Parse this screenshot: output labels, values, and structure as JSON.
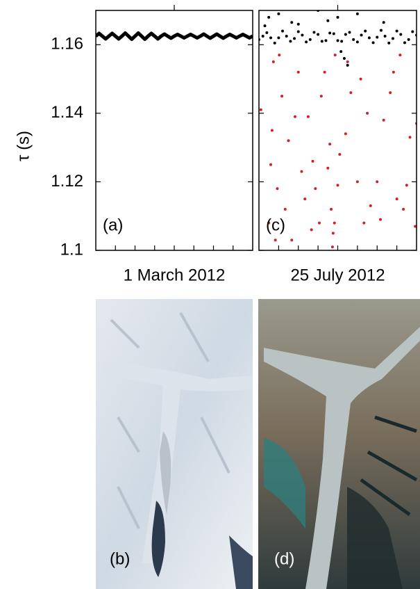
{
  "chart_data": [
    {
      "type": "line",
      "panel_label": "(a)",
      "x_label": "1 March 2012",
      "y_label": "τ (s)",
      "xlim": [
        0,
        24
      ],
      "xticks": [
        3,
        6,
        9,
        12,
        15,
        18,
        21
      ],
      "ylim": [
        1.1,
        1.17
      ],
      "yticks": [
        1.1,
        1.12,
        1.14,
        1.16
      ],
      "x": [
        0,
        0.5,
        1,
        1.5,
        2,
        2.5,
        3,
        3.5,
        4,
        4.5,
        5,
        5.5,
        6,
        6.5,
        7,
        7.5,
        8,
        8.5,
        9,
        9.5,
        10,
        10.5,
        11,
        11.5,
        12,
        12.5,
        13,
        13.5,
        14,
        14.5,
        15,
        15.5,
        16,
        16.5,
        17,
        17.5,
        18,
        18.5,
        19,
        19.5,
        20,
        20.5,
        21,
        21.5,
        22,
        22.5,
        23,
        23.5,
        24
      ],
      "series": [
        {
          "color": "#000000",
          "values": [
            1.1625,
            1.1633,
            1.1625,
            1.1617,
            1.1625,
            1.1633,
            1.1625,
            1.1617,
            1.1625,
            1.1634,
            1.1625,
            1.1616,
            1.1625,
            1.1634,
            1.1625,
            1.1616,
            1.1625,
            1.1633,
            1.1625,
            1.1617,
            1.1625,
            1.1631,
            1.1625,
            1.1619,
            1.1625,
            1.163,
            1.1625,
            1.162,
            1.1625,
            1.163,
            1.1625,
            1.162,
            1.1625,
            1.1631,
            1.1625,
            1.1619,
            1.1625,
            1.1631,
            1.1625,
            1.1619,
            1.1625,
            1.163,
            1.1625,
            1.162,
            1.1625,
            1.163,
            1.1625,
            1.162,
            1.1625
          ]
        }
      ]
    },
    {
      "type": "scatter",
      "panel_label": "(c)",
      "x_label": "25 July 2012",
      "xlim": [
        0,
        24
      ],
      "xticks": [
        3,
        6,
        9,
        12,
        15,
        18,
        21
      ],
      "ylim": [
        1.1,
        1.17
      ],
      "yticks": [
        1.1,
        1.12,
        1.14,
        1.16
      ],
      "series": [
        {
          "color": "#000000",
          "x": [
            0,
            0.6,
            1.2,
            1.8,
            2.4,
            3,
            3.6,
            4.2,
            4.8,
            5.4,
            6,
            6.6,
            7.2,
            7.8,
            8.4,
            9,
            9.6,
            10.2,
            10.8,
            11.4,
            12,
            12.6,
            13.2,
            13.8,
            14.4,
            15,
            15.6,
            16.2,
            16.8,
            17.4,
            18,
            18.6,
            19.2,
            19.8,
            20.4,
            21,
            21.6,
            22.2,
            22.8,
            23.4,
            24,
            1.5,
            3,
            6,
            9,
            12,
            12.5,
            13,
            13.5,
            15,
            0.9,
            5,
            10.5,
            19
          ],
          "values": [
            1.1615,
            1.1625,
            1.1635,
            1.162,
            1.1605,
            1.162,
            1.164,
            1.1625,
            1.161,
            1.1618,
            1.1638,
            1.1628,
            1.1608,
            1.1615,
            1.1636,
            1.163,
            1.161,
            1.1612,
            1.1634,
            1.1632,
            1.1612,
            1.161,
            1.163,
            1.1636,
            1.1615,
            1.1608,
            1.1628,
            1.164,
            1.162,
            1.1606,
            1.1622,
            1.1642,
            1.1625,
            1.1605,
            1.1618,
            1.164,
            1.163,
            1.1606,
            1.1615,
            1.1638,
            1.1628,
            1.168,
            1.169,
            1.166,
            1.17,
            1.168,
            1.158,
            1.156,
            1.154,
            1.169,
            1.1655,
            1.1665,
            1.167,
            1.1665
          ]
        },
        {
          "color": "#d42020",
          "x": [
            0.3,
            1.8,
            1.5,
            2.2,
            2.5,
            3.1,
            2,
            2.8,
            3.5,
            4,
            4.5,
            5,
            5.5,
            6,
            6.5,
            7,
            7.5,
            8,
            8.2,
            8.6,
            9.2,
            9.5,
            10,
            10.5,
            10.8,
            11,
            11.2,
            11.3,
            11.5,
            11.6,
            12,
            12.3,
            13.2,
            13.5,
            14,
            15,
            15.5,
            16,
            16.5,
            17,
            18,
            18.5,
            19,
            20,
            20.5,
            21,
            21.5,
            22,
            22.5,
            23,
            23.8,
            24
          ],
          "values": [
            1.141,
            1.125,
            1.108,
            1.155,
            1.103,
            1.157,
            1.135,
            1.118,
            1.145,
            1.112,
            1.132,
            1.103,
            1.139,
            1.152,
            1.123,
            1.115,
            1.139,
            1.106,
            1.126,
            1.118,
            1.108,
            1.145,
            1.152,
            1.124,
            1.131,
            1.112,
            1.101,
            1.105,
            1.108,
            1.157,
            1.119,
            1.128,
            1.134,
            1.155,
            1.146,
            1.12,
            1.15,
            1.108,
            1.14,
            1.113,
            1.12,
            1.109,
            1.138,
            1.146,
            1.152,
            1.115,
            1.157,
            1.112,
            1.119,
            1.133,
            1.107,
            1.137
          ]
        }
      ]
    }
  ],
  "images": [
    {
      "label": "(b)"
    },
    {
      "label": "(d)"
    }
  ]
}
